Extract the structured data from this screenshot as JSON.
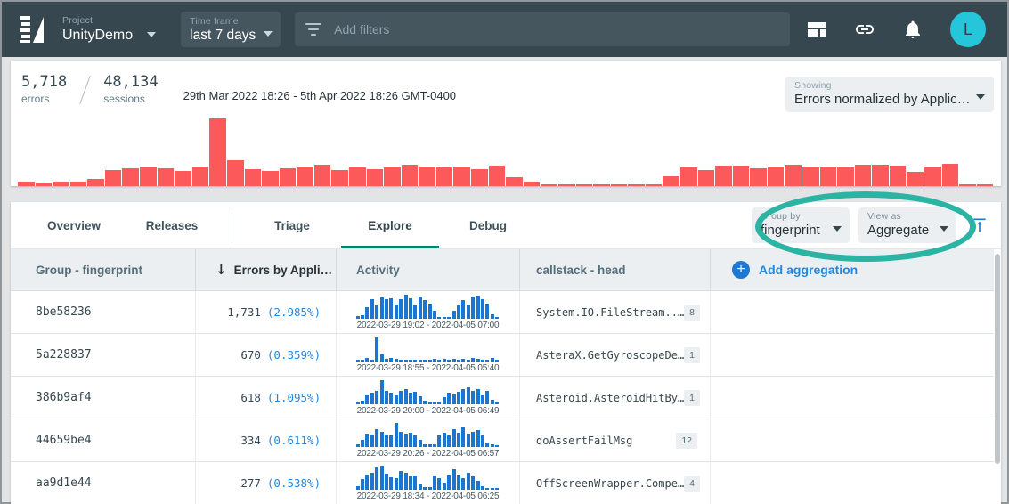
{
  "topbar": {
    "project_label": "Project",
    "project_value": "UnityDemo",
    "timeframe_label": "Time frame",
    "timeframe_value": "last 7 days",
    "filters_placeholder": "Add filters",
    "avatar_letter": "L"
  },
  "summary": {
    "errors_value": "5,718",
    "errors_label": "errors",
    "sessions_value": "48,134",
    "sessions_label": "sessions",
    "date_range": "29th Mar 2022 18:26 - 5th Apr 2022 18:26 GMT-0400",
    "showing_label": "Showing",
    "showing_value": "Errors normalized by Applic…"
  },
  "tabs": {
    "items": [
      {
        "label": "Overview",
        "active": false
      },
      {
        "label": "Releases",
        "active": false
      },
      {
        "label": "Triage",
        "active": false
      },
      {
        "label": "Explore",
        "active": true
      },
      {
        "label": "Debug",
        "active": false
      }
    ]
  },
  "controls": {
    "group_by_label": "Group by",
    "group_by_value": "fingerprint",
    "view_as_label": "View as",
    "view_as_value": "Aggregate"
  },
  "table": {
    "columns": {
      "col1": "Group - fingerprint",
      "col2": "Errors by Appli…",
      "col2_sort": "↓",
      "col3": "Activity",
      "col4": "callstack - head"
    },
    "add_aggregation_label": "Add aggregation",
    "rows": [
      {
        "fingerprint": "8be58236",
        "errors": "1,731",
        "errors_pct": "(2.985%)",
        "activity_range": "2022-03-29 19:02 - 2022-04-05 07:00",
        "callstack": "System.IO.FileStream..…",
        "badge": "8"
      },
      {
        "fingerprint": "5a228837",
        "errors": "670",
        "errors_pct": "(0.359%)",
        "activity_range": "2022-03-29 18:55 - 2022-04-05 05:40",
        "callstack": "AsteraX.GetGyroscopeDe…",
        "badge": "1"
      },
      {
        "fingerprint": "386b9af4",
        "errors": "618",
        "errors_pct": "(1.095%)",
        "activity_range": "2022-03-29 20:00 - 2022-04-05 06:49",
        "callstack": "Asteroid.AsteroidHitBy…",
        "badge": "1"
      },
      {
        "fingerprint": "44659be4",
        "errors": "334",
        "errors_pct": "(0.611%)",
        "activity_range": "2022-03-29 20:26 - 2022-04-05 06:57",
        "callstack": "doAssertFailMsg",
        "badge": "12"
      },
      {
        "fingerprint": "aa9d1e44",
        "errors": "277",
        "errors_pct": "(0.538%)",
        "activity_range": "2022-03-29 18:34 - 2022-04-05 06:25",
        "callstack": "OffScreenWrapper.Compe…",
        "badge": "4"
      }
    ]
  },
  "chart_data": [
    {
      "type": "bar",
      "name": "errors-over-time-histogram",
      "title": "",
      "xlabel": "",
      "ylabel": "",
      "x_range": [
        "29th Mar 2022 18:26",
        "5th Apr 2022 18:26 GMT-0400"
      ],
      "ylim": [
        0,
        100
      ],
      "grid": false,
      "note": "no axis labels shown; values are relative bar heights estimated from pixels, spike = 100",
      "values": [
        7,
        5,
        7,
        7,
        11,
        24,
        26,
        29,
        26,
        23,
        28,
        100,
        38,
        25,
        23,
        26,
        28,
        31,
        24,
        28,
        25,
        28,
        31,
        27,
        29,
        28,
        25,
        30,
        13,
        6,
        2,
        2,
        2,
        2,
        2,
        2,
        2,
        15,
        28,
        24,
        30,
        30,
        26,
        27,
        31,
        28,
        28,
        28,
        31,
        31,
        30,
        21,
        29,
        33,
        2,
        2
      ]
    },
    {
      "type": "bar",
      "name": "activity-8be58236",
      "x_range": [
        "2022-03-29 19:02",
        "2022-04-05 07:00"
      ],
      "ylim": [
        0,
        100
      ],
      "values": [
        10,
        14,
        45,
        80,
        52,
        88,
        80,
        85,
        57,
        80,
        100,
        82,
        52,
        92,
        76,
        60,
        30,
        6,
        6,
        6,
        30,
        56,
        76,
        56,
        86,
        96,
        80,
        62,
        16,
        6
      ]
    },
    {
      "type": "bar",
      "name": "activity-5a228837",
      "x_range": [
        "2022-03-29 18:55",
        "2022-04-05 05:40"
      ],
      "ylim": [
        0,
        100
      ],
      "values": [
        6,
        6,
        12,
        6,
        100,
        26,
        10,
        12,
        10,
        6,
        6,
        6,
        6,
        6,
        6,
        6,
        8,
        6,
        10,
        6,
        8,
        6,
        10,
        6,
        14,
        8,
        6,
        6,
        14,
        6
      ]
    },
    {
      "type": "bar",
      "name": "activity-386b9af4",
      "x_range": [
        "2022-03-29 20:00",
        "2022-04-05 06:49"
      ],
      "ylim": [
        0,
        100
      ],
      "values": [
        8,
        12,
        35,
        45,
        55,
        100,
        55,
        45,
        35,
        55,
        60,
        45,
        50,
        30,
        14,
        5,
        5,
        5,
        28,
        45,
        38,
        50,
        62,
        68,
        55,
        62,
        35,
        52,
        18,
        5
      ]
    },
    {
      "type": "bar",
      "name": "activity-44659be4",
      "x_range": [
        "2022-03-29 20:26",
        "2022-04-05 06:57"
      ],
      "ylim": [
        0,
        100
      ],
      "values": [
        8,
        28,
        55,
        50,
        72,
        60,
        50,
        45,
        100,
        62,
        52,
        58,
        45,
        28,
        10,
        8,
        8,
        48,
        58,
        45,
        72,
        58,
        80,
        55,
        62,
        68,
        45,
        12,
        8,
        5
      ]
    },
    {
      "type": "bar",
      "name": "activity-aa9d1e44",
      "x_range": [
        "2022-03-29 18:34",
        "2022-04-05 06:25"
      ],
      "ylim": [
        0,
        100
      ],
      "values": [
        12,
        42,
        62,
        70,
        90,
        100,
        65,
        50,
        45,
        75,
        70,
        52,
        56,
        20,
        8,
        8,
        58,
        45,
        28,
        62,
        85,
        60,
        45,
        70,
        55,
        35,
        14,
        6,
        4,
        4
      ]
    }
  ],
  "icons": {
    "logo": "backtrace stripes + wedge",
    "filter": "funnel lines",
    "dashboard": "layout grid",
    "link": "chain link",
    "notifications": "bell",
    "caret-down": "▾",
    "sort-descending": "↓",
    "add": "+ in circle",
    "scroll-to-top": "up arrow with bar"
  },
  "colors": {
    "topbar_bg": "#37474f",
    "error_bar_red": "#fc5a5a",
    "sparkline_blue": "#1b76d1",
    "accent_blue": "#1e88e5",
    "tab_underline_green": "#00866e",
    "annotation_teal": "#2bb3a3",
    "avatar_cyan": "#26c6da",
    "table_header_bg": "#eceff1"
  }
}
